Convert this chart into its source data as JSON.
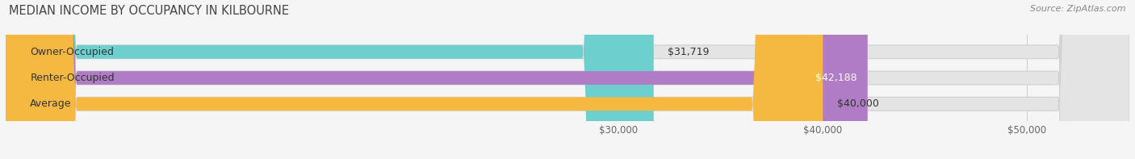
{
  "title": "MEDIAN INCOME BY OCCUPANCY IN KILBOURNE",
  "source": "Source: ZipAtlas.com",
  "categories": [
    "Owner-Occupied",
    "Renter-Occupied",
    "Average"
  ],
  "values": [
    31719,
    42188,
    40000
  ],
  "bar_colors": [
    "#6ecfcf",
    "#b07cc6",
    "#f5b942"
  ],
  "bar_labels": [
    "$31,719",
    "$42,188",
    "$40,000"
  ],
  "xlim": [
    0,
    55000
  ],
  "xticks": [
    30000,
    40000,
    50000
  ],
  "xtick_labels": [
    "$30,000",
    "$40,000",
    "$50,000"
  ],
  "background_color": "#f5f5f5",
  "bar_bg_color": "#e4e4e4",
  "title_fontsize": 10.5,
  "source_fontsize": 8,
  "label_fontsize": 9,
  "tick_fontsize": 8.5,
  "bar_height": 0.52,
  "label_value_colors": [
    "#333333",
    "#ffffff",
    "#333333"
  ]
}
